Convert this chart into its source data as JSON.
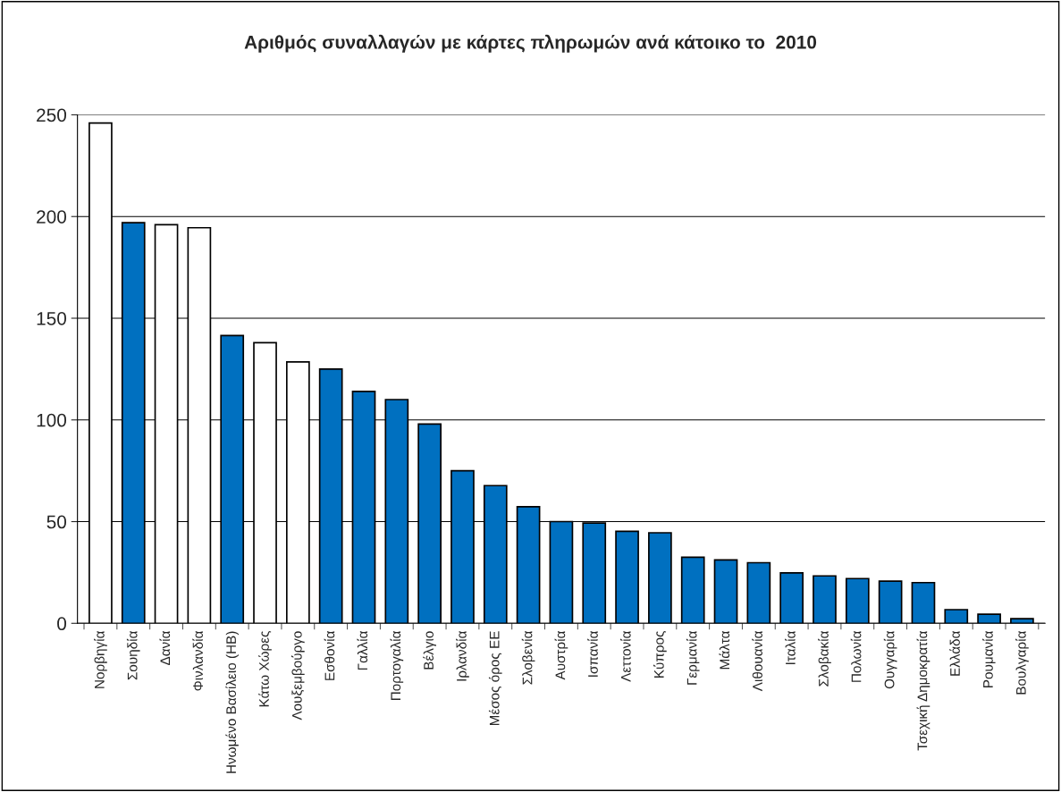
{
  "chart_data": {
    "type": "bar",
    "title": "Αριθμός συναλλαγών με κάρτες πληρωμών ανά κάτοικο το  2010",
    "categories": [
      "Νορβηγία",
      "Σουηδία",
      "Δανία",
      "Φινλανδία",
      "Ηνωμένο Βασίλειο (ΗΒ)",
      "Κάτω Χώρες",
      "Λουξεμβούργο",
      "Εσθονία",
      "Γαλλία",
      "Πορτογαλία",
      "Βέλγιο",
      "Ιρλανδία",
      "Μέσος όρος ΕΕ",
      "Σλοβενία",
      "Αυστρία",
      "Ισπανία",
      "Λεττονία",
      "Κύπρος",
      "Γερμανία",
      "Μάλτα",
      "Λιθουανία",
      "Ιταλία",
      "Σλοβακία",
      "Πολωνία",
      "Ουγγαρία",
      "Τσεχική Δημοκρατία",
      "Ελλάδα",
      "Ρουμανία",
      "Βουλγαρία"
    ],
    "values": [
      246,
      197,
      196,
      194.5,
      141.5,
      138,
      128.5,
      125,
      114,
      110,
      98,
      75,
      67.7,
      57.3,
      50,
      49.3,
      45.2,
      44.5,
      32.5,
      31.2,
      29.8,
      24.8,
      23.3,
      22,
      20.7,
      20,
      6.7,
      4.5,
      2.3
    ],
    "colors": [
      "#ffffff",
      "#0070c0",
      "#ffffff",
      "#ffffff",
      "#0070c0",
      "#ffffff",
      "#ffffff",
      "#0070c0",
      "#0070c0",
      "#0070c0",
      "#0070c0",
      "#0070c0",
      "#0070c0",
      "#0070c0",
      "#0070c0",
      "#0070c0",
      "#0070c0",
      "#0070c0",
      "#0070c0",
      "#0070c0",
      "#0070c0",
      "#0070c0",
      "#0070c0",
      "#0070c0",
      "#0070c0",
      "#0070c0",
      "#0070c0",
      "#0070c0",
      "#0070c0"
    ],
    "ylim": [
      0,
      250
    ],
    "yticks": [
      0,
      50,
      100,
      150,
      200,
      250
    ],
    "grid": "y"
  }
}
